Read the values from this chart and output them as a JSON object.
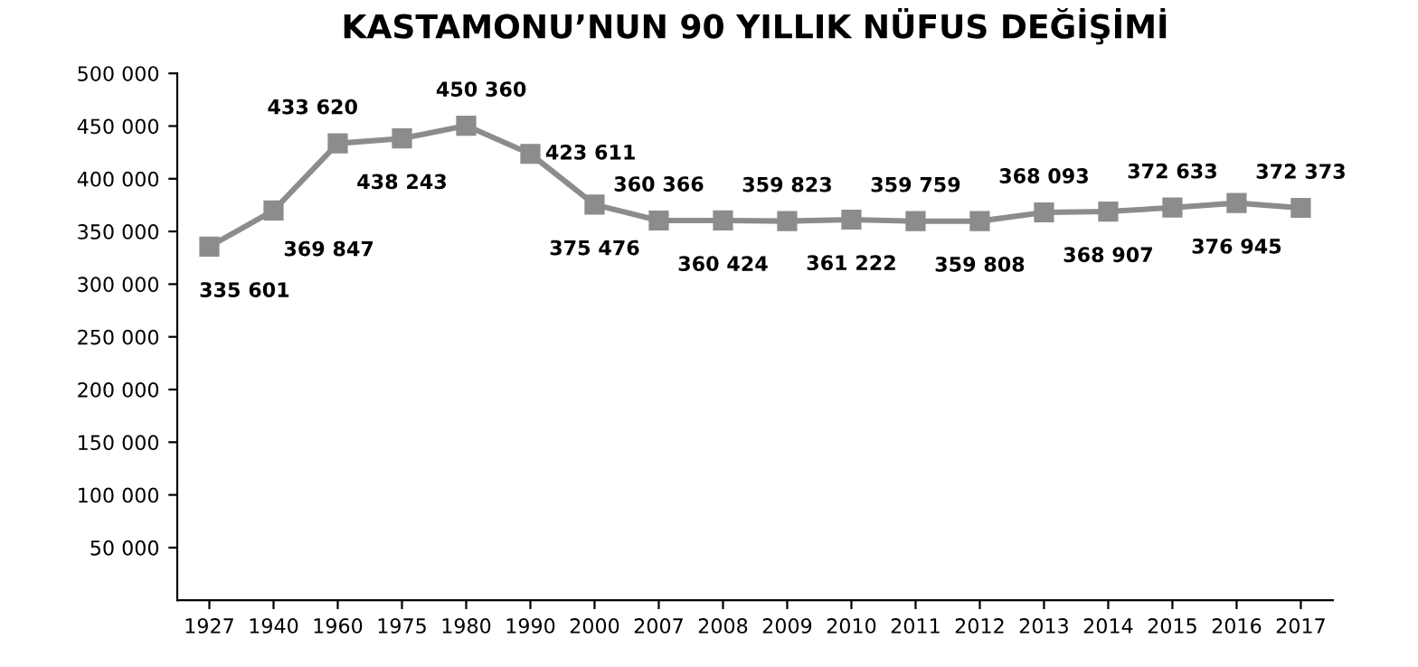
{
  "chart_data": {
    "type": "line",
    "title": "KASTAMONU’NUN 90 YILLIK NÜFUS DEĞİŞİMİ",
    "categories": [
      "1927",
      "1940",
      "1960",
      "1975",
      "1980",
      "1990",
      "2000",
      "2007",
      "2008",
      "2009",
      "2010",
      "2011",
      "2012",
      "2013",
      "2014",
      "2015",
      "2016",
      "2017"
    ],
    "series": [
      {
        "color": "#8c8c8c",
        "values": [
          335601,
          369847,
          433620,
          438243,
          450360,
          423611,
          375476,
          360366,
          360424,
          359823,
          361222,
          359759,
          359808,
          368093,
          368907,
          372633,
          376945,
          372373
        ],
        "value_labels": [
          "335 601",
          "369 847",
          "433 620",
          "438 243",
          "450 360",
          "423 611",
          "375 476",
          "360 366",
          "360 424",
          "359 823",
          "361 222",
          "359 759",
          "359 808",
          "368 093",
          "368 907",
          "372 633",
          "376 945",
          "372 373"
        ]
      }
    ],
    "ylim": [
      0,
      500000
    ],
    "yticks": [
      {
        "value": 50000,
        "label": "50 000"
      },
      {
        "value": 100000,
        "label": "100 000"
      },
      {
        "value": 150000,
        "label": "150 000"
      },
      {
        "value": 200000,
        "label": "200 000"
      },
      {
        "value": 250000,
        "label": "250 000"
      },
      {
        "value": 300000,
        "label": "300 000"
      },
      {
        "value": 350000,
        "label": "350 000"
      },
      {
        "value": 400000,
        "label": "400 000"
      },
      {
        "value": 450000,
        "label": "450 000"
      },
      {
        "value": 500000,
        "label": "500 000"
      }
    ],
    "grid": false,
    "legend": false,
    "marker": "square",
    "line_style": "solid"
  }
}
